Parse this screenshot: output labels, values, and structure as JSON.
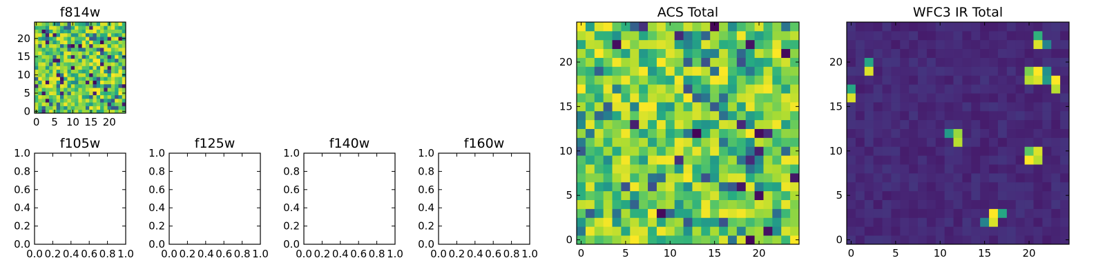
{
  "figure": {
    "background": "#ffffff",
    "colormap": "viridis"
  },
  "chart_data": [
    {
      "type": "heatmap",
      "id": "f814w",
      "title": "f814w",
      "grid_size": [
        25,
        25
      ],
      "xticks": [
        "0",
        "5",
        "10",
        "15",
        "20"
      ],
      "yticks": [
        "0",
        "5",
        "10",
        "15",
        "20"
      ],
      "xlim": [
        -0.5,
        24.5
      ],
      "ylim": [
        -0.5,
        24.5
      ],
      "values_seed": 814,
      "values_kind": "noise",
      "color_range": [
        0,
        1
      ]
    },
    {
      "type": "scatter",
      "id": "f105w",
      "title": "f105w",
      "values": [],
      "xlim": [
        0,
        1
      ],
      "ylim": [
        0,
        1
      ],
      "xticks": [
        "0.0",
        "0.2",
        "0.4",
        "0.6",
        "0.8",
        "1.0"
      ],
      "yticks": [
        "0.0",
        "0.2",
        "0.4",
        "0.6",
        "0.8",
        "1.0"
      ]
    },
    {
      "type": "scatter",
      "id": "f125w",
      "title": "f125w",
      "values": [],
      "xlim": [
        0,
        1
      ],
      "ylim": [
        0,
        1
      ],
      "xticks": [
        "0.0",
        "0.2",
        "0.4",
        "0.6",
        "0.8",
        "1.0"
      ],
      "yticks": [
        "0.0",
        "0.2",
        "0.4",
        "0.6",
        "0.8",
        "1.0"
      ]
    },
    {
      "type": "scatter",
      "id": "f140w",
      "title": "f140w",
      "values": [],
      "xlim": [
        0,
        1
      ],
      "ylim": [
        0,
        1
      ],
      "xticks": [
        "0.0",
        "0.2",
        "0.4",
        "0.6",
        "0.8",
        "1.0"
      ],
      "yticks": [
        "0.0",
        "0.2",
        "0.4",
        "0.6",
        "0.8",
        "1.0"
      ]
    },
    {
      "type": "scatter",
      "id": "f160w",
      "title": "f160w",
      "values": [],
      "xlim": [
        0,
        1
      ],
      "ylim": [
        0,
        1
      ],
      "xticks": [
        "0.0",
        "0.2",
        "0.4",
        "0.6",
        "0.8",
        "1.0"
      ],
      "yticks": [
        "0.0",
        "0.2",
        "0.4",
        "0.6",
        "0.8",
        "1.0"
      ]
    },
    {
      "type": "heatmap",
      "id": "acs_total",
      "title": "ACS Total",
      "grid_size": [
        25,
        25
      ],
      "xticks": [
        "0",
        "5",
        "10",
        "15",
        "20"
      ],
      "yticks": [
        "0",
        "5",
        "10",
        "15",
        "20"
      ],
      "xlim": [
        -0.5,
        24.5
      ],
      "ylim": [
        -0.5,
        24.5
      ],
      "values_seed": 4242,
      "values_kind": "noise",
      "color_range": [
        0,
        1
      ]
    },
    {
      "type": "heatmap",
      "id": "wfc3_ir_total",
      "title": "WFC3 IR Total",
      "grid_size": [
        25,
        25
      ],
      "xticks": [
        "0",
        "5",
        "10",
        "15",
        "20"
      ],
      "yticks": [
        "0",
        "5",
        "10",
        "15",
        "20"
      ],
      "xlim": [
        -0.5,
        24.5
      ],
      "ylim": [
        -0.5,
        24.5
      ],
      "values_seed": 160,
      "values_kind": "sparse",
      "background_level": 0.08,
      "color_range": [
        0,
        1
      ],
      "bright_cells": [
        {
          "x": 21,
          "y": 23,
          "v": 0.65
        },
        {
          "x": 21,
          "y": 22,
          "v": 0.95
        },
        {
          "x": 22,
          "y": 22,
          "v": 0.45
        },
        {
          "x": 2,
          "y": 20,
          "v": 0.6
        },
        {
          "x": 2,
          "y": 19,
          "v": 0.95
        },
        {
          "x": 20,
          "y": 19,
          "v": 0.8
        },
        {
          "x": 21,
          "y": 19,
          "v": 1.0
        },
        {
          "x": 22,
          "y": 19,
          "v": 0.5
        },
        {
          "x": 20,
          "y": 18,
          "v": 0.9
        },
        {
          "x": 21,
          "y": 18,
          "v": 0.95
        },
        {
          "x": 22,
          "y": 18,
          "v": 0.55
        },
        {
          "x": 23,
          "y": 18,
          "v": 1.0
        },
        {
          "x": 23,
          "y": 17,
          "v": 0.9
        },
        {
          "x": 0,
          "y": 17,
          "v": 0.6
        },
        {
          "x": 0,
          "y": 16,
          "v": 0.95
        },
        {
          "x": 11,
          "y": 12,
          "v": 0.55
        },
        {
          "x": 12,
          "y": 12,
          "v": 0.85
        },
        {
          "x": 12,
          "y": 11,
          "v": 0.9
        },
        {
          "x": 20,
          "y": 10,
          "v": 0.75
        },
        {
          "x": 21,
          "y": 10,
          "v": 0.95
        },
        {
          "x": 20,
          "y": 9,
          "v": 1.0
        },
        {
          "x": 21,
          "y": 9,
          "v": 0.9
        },
        {
          "x": 16,
          "y": 3,
          "v": 1.0
        },
        {
          "x": 17,
          "y": 3,
          "v": 0.6
        },
        {
          "x": 15,
          "y": 2,
          "v": 0.45
        },
        {
          "x": 16,
          "y": 2,
          "v": 0.95
        }
      ]
    }
  ]
}
